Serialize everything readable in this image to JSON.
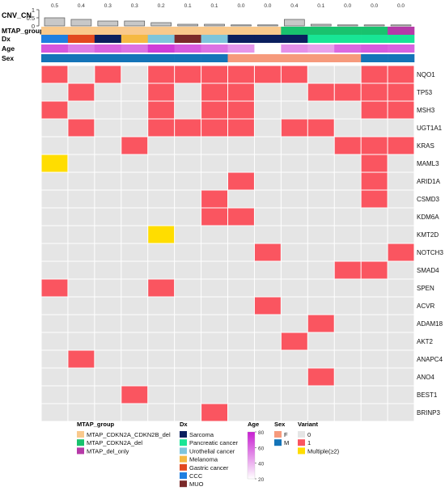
{
  "chart_data": {
    "type": "heatmap",
    "title": "",
    "cnv": {
      "label": "CNV_CN",
      "yticks": [
        "0",
        "0.5",
        "1"
      ],
      "ylim": [
        0,
        1
      ],
      "labels": [
        "0.5",
        "0.4",
        "0.3",
        "0.3",
        "0.2",
        "0.1",
        "0.1",
        "0.0",
        "0.0",
        "0.4",
        "0.1",
        "0.0",
        "0.0",
        "0.0"
      ],
      "values": [
        0.5,
        0.4,
        0.3,
        0.3,
        0.2,
        0.1,
        0.1,
        0.05,
        0.05,
        0.4,
        0.1,
        0.05,
        0.05,
        0.05
      ]
    },
    "annotations": [
      {
        "key": "MTAP_group",
        "label": "MTAP_group",
        "values": [
          "A",
          "A",
          "A",
          "A",
          "A",
          "A",
          "A",
          "A",
          "A",
          "B",
          "B",
          "B",
          "B",
          "C"
        ]
      },
      {
        "key": "Dx",
        "label": "Dx",
        "values": [
          "CCC",
          "Gastric cancer",
          "Sarcoma",
          "Melanoma",
          "Urothelial cancer",
          "MUO",
          "Urothelial cancer",
          "Sarcoma",
          "Sarcoma",
          "Sarcoma",
          "Pancreatic cancer",
          "Pancreatic cancer",
          "Pancreatic cancer",
          "Pancreatic cancer"
        ]
      },
      {
        "key": "Age",
        "label": "Age",
        "values": [
          65,
          55,
          62,
          58,
          72,
          64,
          58,
          48,
          20,
          50,
          45,
          60,
          64,
          62
        ]
      },
      {
        "key": "Sex",
        "label": "Sex",
        "values": [
          "M",
          "M",
          "M",
          "M",
          "M",
          "M",
          "M",
          "F",
          "F",
          "F",
          "F",
          "F",
          "M",
          "M"
        ]
      }
    ],
    "genes": [
      "NQO1",
      "TP53",
      "MSH3",
      "UGT1A1",
      "KRAS",
      "MAML3",
      "ARID1A",
      "CSMD3",
      "KDM6A",
      "KMT2D",
      "NOTCH3",
      "SMAD4",
      "SPEN",
      "ACVR",
      "ADAM18",
      "AKT2",
      "ANAPC4",
      "ANO4",
      "BEST1",
      "BRINP3"
    ],
    "matrix": [
      [
        1,
        0,
        1,
        0,
        1,
        1,
        1,
        1,
        1,
        1,
        0,
        0,
        1,
        1
      ],
      [
        0,
        1,
        0,
        0,
        1,
        0,
        1,
        1,
        0,
        0,
        1,
        1,
        1,
        1
      ],
      [
        1,
        0,
        0,
        0,
        1,
        0,
        1,
        1,
        0,
        0,
        0,
        0,
        1,
        1
      ],
      [
        0,
        1,
        0,
        0,
        1,
        1,
        1,
        1,
        0,
        1,
        1,
        0,
        0,
        0
      ],
      [
        0,
        0,
        0,
        1,
        0,
        0,
        0,
        0,
        0,
        0,
        0,
        1,
        1,
        1
      ],
      [
        2,
        0,
        0,
        0,
        0,
        0,
        0,
        0,
        0,
        0,
        0,
        0,
        1,
        0
      ],
      [
        0,
        0,
        0,
        0,
        0,
        0,
        0,
        1,
        0,
        0,
        0,
        0,
        1,
        0
      ],
      [
        0,
        0,
        0,
        0,
        0,
        0,
        1,
        0,
        0,
        0,
        0,
        0,
        1,
        0
      ],
      [
        0,
        0,
        0,
        0,
        0,
        0,
        1,
        1,
        0,
        0,
        0,
        0,
        0,
        0
      ],
      [
        0,
        0,
        0,
        0,
        2,
        0,
        0,
        0,
        0,
        0,
        0,
        0,
        0,
        0
      ],
      [
        0,
        0,
        0,
        0,
        0,
        0,
        0,
        0,
        1,
        0,
        0,
        0,
        0,
        1
      ],
      [
        0,
        0,
        0,
        0,
        0,
        0,
        0,
        0,
        0,
        0,
        0,
        1,
        1,
        0
      ],
      [
        1,
        0,
        0,
        0,
        1,
        0,
        0,
        0,
        0,
        0,
        0,
        0,
        0,
        0
      ],
      [
        0,
        0,
        0,
        0,
        0,
        0,
        0,
        0,
        1,
        0,
        0,
        0,
        0,
        0
      ],
      [
        0,
        0,
        0,
        0,
        0,
        0,
        0,
        0,
        0,
        0,
        1,
        0,
        0,
        0
      ],
      [
        0,
        0,
        0,
        0,
        0,
        0,
        0,
        0,
        0,
        1,
        0,
        0,
        0,
        0
      ],
      [
        0,
        1,
        0,
        0,
        0,
        0,
        0,
        0,
        0,
        0,
        0,
        0,
        0,
        0
      ],
      [
        0,
        0,
        0,
        0,
        0,
        0,
        0,
        0,
        0,
        0,
        1,
        0,
        0,
        0
      ],
      [
        0,
        0,
        0,
        1,
        0,
        0,
        0,
        0,
        0,
        0,
        0,
        0,
        0,
        0
      ],
      [
        0,
        0,
        0,
        0,
        0,
        0,
        1,
        0,
        0,
        0,
        0,
        0,
        0,
        0
      ]
    ],
    "legends": {
      "mtap": {
        "title": "MTAP_group",
        "items": [
          {
            "key": "A",
            "label": "MTAP_CDKN2A_CDKN2B_del",
            "color": "#f9c98c"
          },
          {
            "key": "B",
            "label": "MTAP_CDKN2A_del",
            "color": "#19c26e"
          },
          {
            "key": "C",
            "label": "MTAP_del_only",
            "color": "#b63aa8"
          }
        ]
      },
      "dx": {
        "title": "Dx",
        "items": [
          {
            "key": "Sarcoma",
            "label": "Sarcoma",
            "color": "#0b1f5e"
          },
          {
            "key": "Pancreatic cancer",
            "label": "Pancreatic cancer",
            "color": "#18e595"
          },
          {
            "key": "Urothelial cancer",
            "label": "Urothelial cancer",
            "color": "#7ec5dc"
          },
          {
            "key": "Melanoma",
            "label": "Melanoma",
            "color": "#f5b942"
          },
          {
            "key": "Gastric cancer",
            "label": "Gastric cancer",
            "color": "#e2481f"
          },
          {
            "key": "CCC",
            "label": "CCC",
            "color": "#1f7fe0"
          },
          {
            "key": "MUO",
            "label": "MUO",
            "color": "#7b2a2a"
          }
        ]
      },
      "age": {
        "title": "Age",
        "ticks": [
          "80",
          "60",
          "40",
          "20"
        ],
        "min": 20,
        "max": 80,
        "color_low": "#ffffff",
        "color_high": "#c81ed2"
      },
      "sex": {
        "title": "Sex",
        "items": [
          {
            "key": "F",
            "label": "F",
            "color": "#f69a7c"
          },
          {
            "key": "M",
            "label": "M",
            "color": "#1474b8"
          }
        ]
      },
      "variant": {
        "title": "Variant",
        "items": [
          {
            "key": 0,
            "label": "0",
            "color": "#e5e5e5"
          },
          {
            "key": 1,
            "label": "1",
            "color": "#fa5560"
          },
          {
            "key": 2,
            "label": "Multiple(≥2)",
            "color": "#ffdd00"
          }
        ]
      }
    }
  }
}
